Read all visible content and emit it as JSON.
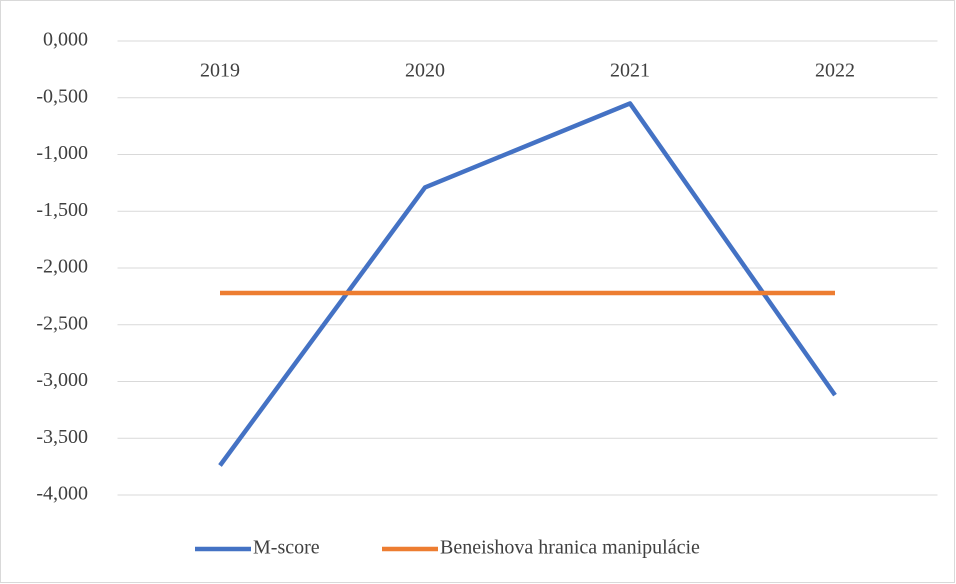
{
  "chart_data": {
    "type": "line",
    "categories": [
      "2019",
      "2020",
      "2021",
      "2022"
    ],
    "series": [
      {
        "name": "M-score",
        "color": "#4472c4",
        "values": [
          -3.74,
          -1.29,
          -0.55,
          -3.12
        ]
      },
      {
        "name": "Beneishova hranica manipulácie",
        "color": "#ed7d31",
        "values": [
          -2.22,
          -2.22,
          -2.22,
          -2.22
        ]
      }
    ],
    "ylim": [
      -4,
      0
    ],
    "yticks": [
      {
        "value": 0,
        "label": "0,000"
      },
      {
        "value": -0.5,
        "label": "-0,500"
      },
      {
        "value": -1,
        "label": "-1,000"
      },
      {
        "value": -1.5,
        "label": "-1,500"
      },
      {
        "value": -2,
        "label": "-2,000"
      },
      {
        "value": -2.5,
        "label": "-2,500"
      },
      {
        "value": -3,
        "label": "-3,000"
      },
      {
        "value": -3.5,
        "label": "-3,500"
      },
      {
        "value": -4,
        "label": "-4,000"
      }
    ],
    "grid": true,
    "legend": "bottom"
  }
}
